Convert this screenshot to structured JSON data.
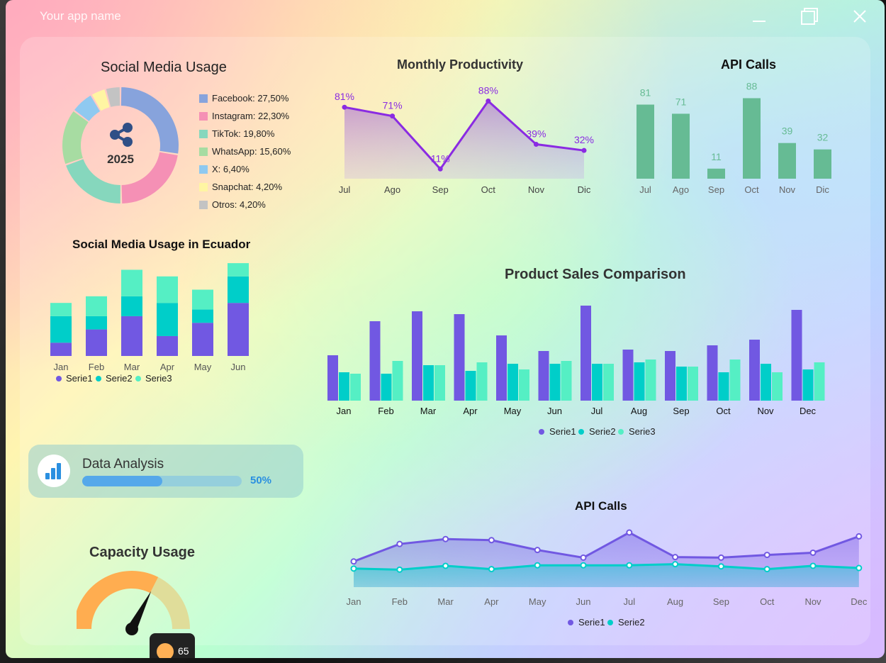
{
  "window": {
    "title": "Your app name"
  },
  "social_media_usage": {
    "title": "Social Media Usage",
    "center_label": "2025",
    "center_icon": "share-icon",
    "slices": [
      {
        "label": "Facebook: 27,50%",
        "value": 27.5,
        "color": "#87a3dc"
      },
      {
        "label": "Instagram: 22,30%",
        "value": 22.3,
        "color": "#f590b5"
      },
      {
        "label": "TikTok: 19,80%",
        "value": 19.8,
        "color": "#86d7bd"
      },
      {
        "label": "WhatsApp: 15,60%",
        "value": 15.6,
        "color": "#a7dca2"
      },
      {
        "label": "X: 6,40%",
        "value": 6.4,
        "color": "#8fc9f0"
      },
      {
        "label": "Snapchat: 4,20%",
        "value": 4.2,
        "color": "#fff5a3"
      },
      {
        "label": "Otros: 4,20%",
        "value": 4.2,
        "color": "#c3c3c3"
      }
    ]
  },
  "monthly_productivity": {
    "title": "Monthly Productivity",
    "categories": [
      "Jul",
      "Ago",
      "Sep",
      "Oct",
      "Nov",
      "Dic"
    ],
    "values": [
      81,
      71,
      11,
      88,
      39,
      32
    ],
    "value_labels": [
      "81%",
      "71%",
      "11%",
      "88%",
      "39%",
      "32%"
    ],
    "color": "#8a2be2"
  },
  "api_calls_bar": {
    "title": "API Calls",
    "categories": [
      "Jul",
      "Ago",
      "Sep",
      "Oct",
      "Nov",
      "Dic"
    ],
    "values": [
      81,
      71,
      11,
      88,
      39,
      32
    ],
    "color": "#66bb94"
  },
  "ecuador_usage": {
    "title": "Social Media Usage in Ecuador",
    "categories": [
      "Jan",
      "Feb",
      "Mar",
      "Apr",
      "May",
      "Jun"
    ],
    "series": [
      {
        "name": "Serie1",
        "values": [
          10,
          20,
          30,
          15,
          25,
          40
        ],
        "color": "#7158e2"
      },
      {
        "name": "Serie2",
        "values": [
          20,
          10,
          15,
          25,
          10,
          20
        ],
        "color": "#00cec9"
      },
      {
        "name": "Serie3",
        "values": [
          10,
          15,
          20,
          20,
          15,
          10
        ],
        "color": "#55efc4"
      }
    ]
  },
  "product_sales": {
    "title": "Product Sales Comparison",
    "categories": [
      "Jan",
      "Feb",
      "Mar",
      "Apr",
      "May",
      "Jun",
      "Jul",
      "Aug",
      "Sep",
      "Oct",
      "Nov",
      "Dec"
    ],
    "series": [
      {
        "name": "Serie1",
        "values": [
          32,
          56,
          63,
          61,
          46,
          35,
          67,
          36,
          35,
          39,
          43,
          64
        ],
        "color": "#7158e2"
      },
      {
        "name": "Serie2",
        "values": [
          20,
          19,
          25,
          21,
          26,
          26,
          26,
          27,
          24,
          20,
          26,
          22
        ],
        "color": "#00cec9"
      },
      {
        "name": "Serie3",
        "values": [
          19,
          28,
          25,
          27,
          22,
          28,
          26,
          29,
          24,
          29,
          20,
          27
        ],
        "color": "#55efc4"
      }
    ]
  },
  "data_analysis": {
    "label": "Data Analysis",
    "progress": 0.5,
    "progress_label": "50%",
    "icon": "bar-chart-icon"
  },
  "capacity_usage": {
    "title": "Capacity Usage",
    "value": 65,
    "value_label": "65",
    "min": 0,
    "max": 100,
    "fill_color": "#ffad50",
    "track_color": "#e0dd9a"
  },
  "api_calls_area": {
    "title": "API Calls",
    "categories": [
      "Jan",
      "Feb",
      "Mar",
      "Apr",
      "May",
      "Jun",
      "Jul",
      "Aug",
      "Sep",
      "Oct",
      "Nov",
      "Dec"
    ],
    "series": [
      {
        "name": "Serie1",
        "values": [
          47,
          79,
          88,
          86,
          68,
          54,
          100,
          55,
          54,
          59,
          63,
          93
        ],
        "color": "#7158e2"
      },
      {
        "name": "Serie2",
        "values": [
          34,
          32,
          39,
          33,
          40,
          40,
          40,
          42,
          38,
          33,
          39,
          35
        ],
        "color": "#00cec9"
      }
    ]
  }
}
